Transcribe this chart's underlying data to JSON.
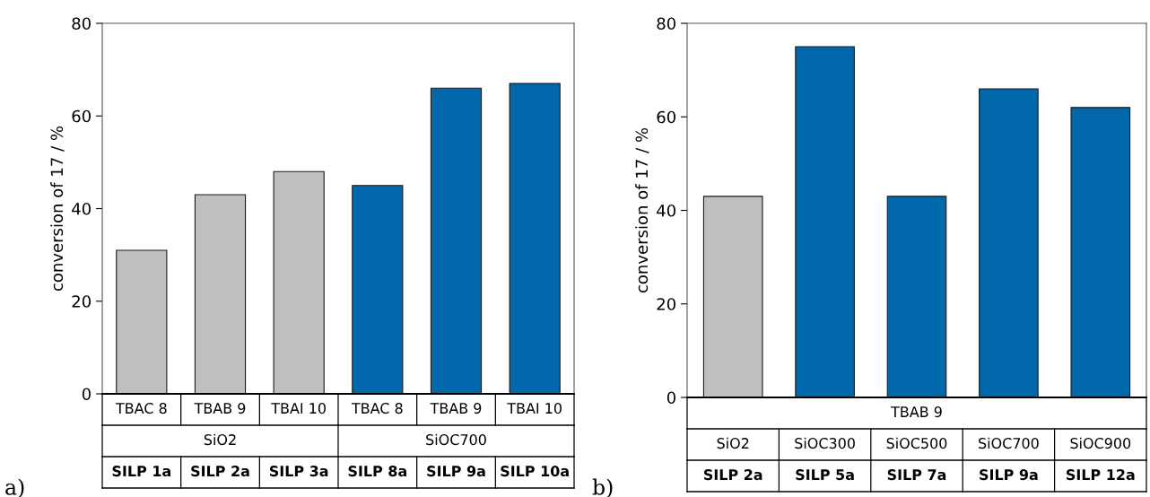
{
  "chart_data": [
    {
      "type": "bar",
      "ylabel": "conversion of 17 / %",
      "categories": [
        "TBAC 8",
        "TBAB 9",
        "TBAI 10",
        "TBAC 8",
        "TBAB 9",
        "TBAI 10"
      ],
      "values": [
        31,
        43,
        48,
        45,
        66,
        67
      ],
      "colors": [
        "#bfbfbf",
        "#bfbfbf",
        "#bfbfbf",
        "#0068ab",
        "#0068ab",
        "#0068ab"
      ],
      "ylim": [
        0,
        80
      ],
      "yticks": [
        0,
        20,
        40,
        60,
        80
      ],
      "annotations": [
        "SiO2",
        "SiOC700",
        "SILP 1a",
        "SILP 2a",
        "SILP 3a",
        "SILP 8a",
        "SILP 9a",
        "SILP 10a",
        "a)"
      ]
    },
    {
      "type": "bar",
      "ylabel": "conversion of 17 / %",
      "categories": [
        "SiO2",
        "SiOC300",
        "SiOC500",
        "SiOC700",
        "SiOC900"
      ],
      "values": [
        43,
        75,
        43,
        66,
        62
      ],
      "colors": [
        "#bfbfbf",
        "#0068ab",
        "#0068ab",
        "#0068ab",
        "#0068ab"
      ],
      "ylim": [
        0,
        80
      ],
      "yticks": [
        0,
        20,
        40,
        60,
        80
      ],
      "annotations": [
        "TBAB 9",
        "SILP 2a",
        "SILP 5a",
        "SILP 7a",
        "SILP 9a",
        "SILP 12a",
        "b)"
      ]
    }
  ]
}
